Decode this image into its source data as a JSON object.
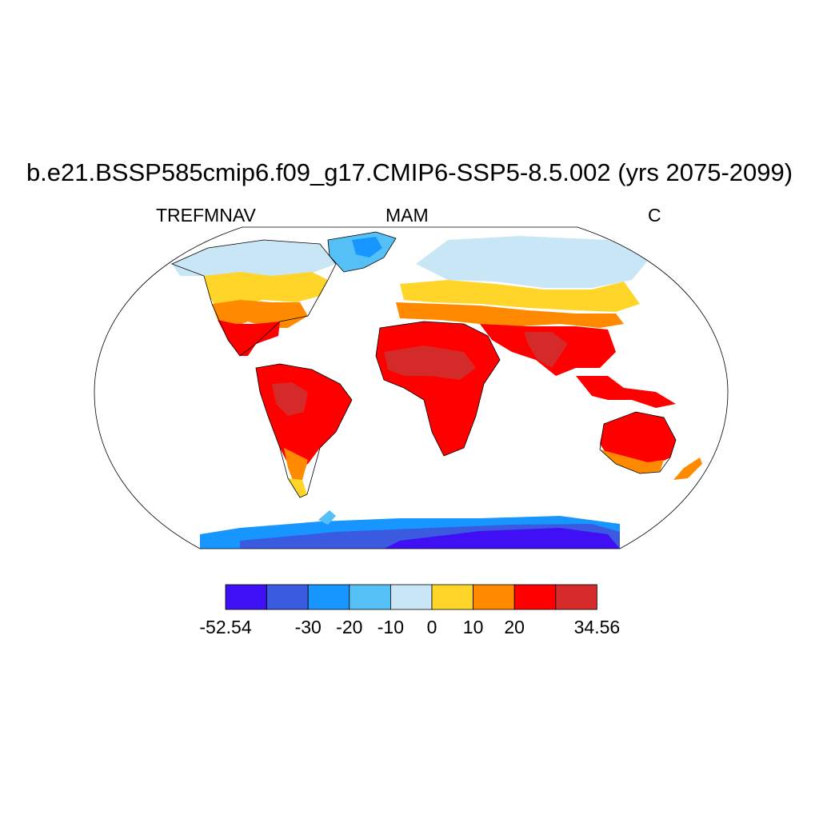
{
  "title": "b.e21.BSSP585cmip6.f09_g17.CMIP6-SSP5-8.5.002 (yrs 2075-2099)",
  "left_label": "TREFMNAV",
  "center_label": "MAM",
  "right_label": "C",
  "colorbar": {
    "colors": [
      "#4010f5",
      "#3a5be0",
      "#1896ff",
      "#55c0f5",
      "#c8e6f6",
      "#ffd52a",
      "#ff8a00",
      "#ff0000",
      "#d42a2a"
    ],
    "labels": [
      "-52.54",
      "-30",
      "-20",
      "-10",
      "0",
      "10",
      "20",
      "34.56"
    ]
  },
  "colors": {
    "land_hot": "#ff0000",
    "land_hottest": "#d42a2a",
    "land_warm": "#ff8a00",
    "land_mild": "#ffd52a",
    "land_cool": "#c8e6f6",
    "land_cold": "#55c0f5",
    "ice_cold": "#1896ff",
    "ice_coldest": "#4010f5",
    "ice_mid": "#3a5be0"
  }
}
